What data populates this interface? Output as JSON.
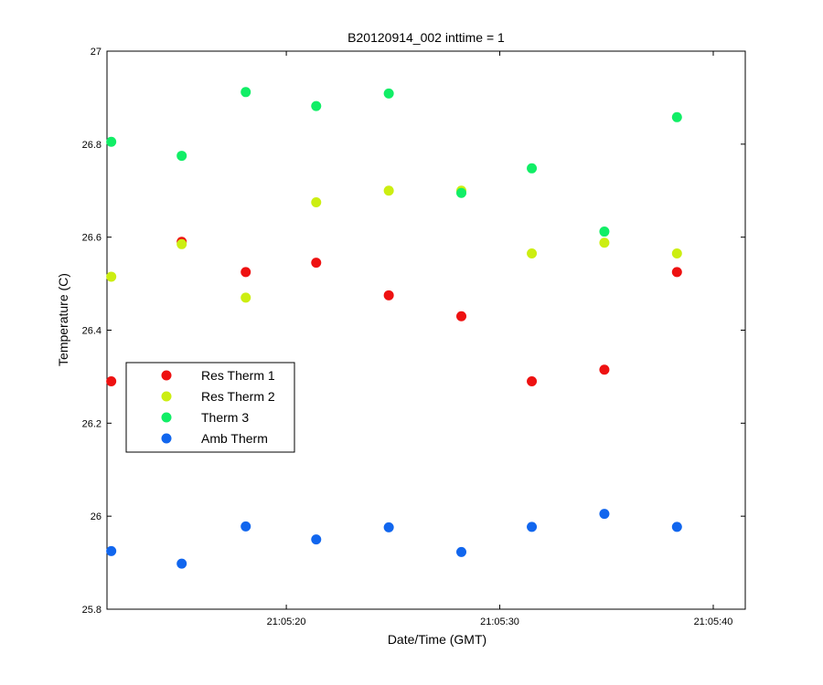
{
  "chart_data": {
    "type": "scatter",
    "title": "B20120914_002 inttime = 1",
    "xlabel": "Date/Time (GMT)",
    "ylabel": "Temperature (C)",
    "x_unit": "time (GMT)",
    "xlim": [
      "21:05:11.6",
      "21:05:41.5"
    ],
    "ylim": [
      25.8,
      27
    ],
    "x_ticks": [
      "21:05:20",
      "21:05:30",
      "21:05:40"
    ],
    "y_ticks": [
      "25.8",
      "26",
      "26.2",
      "26.4",
      "26.6",
      "26.8",
      "27"
    ],
    "grid": false,
    "legend_placement": "left-middle",
    "x": [
      "21:05:11.8",
      "21:05:15.1",
      "21:05:18.1",
      "21:05:21.4",
      "21:05:24.8",
      "21:05:28.2",
      "21:05:31.5",
      "21:05:34.9",
      "21:05:38.3"
    ],
    "series": [
      {
        "name": "Res Therm 1",
        "color": "#ee1111",
        "values": [
          26.29,
          26.59,
          26.525,
          26.545,
          26.475,
          26.43,
          26.29,
          26.315,
          26.525
        ]
      },
      {
        "name": "Res Therm 2",
        "color": "#ccee11",
        "values": [
          26.515,
          26.585,
          26.47,
          26.675,
          26.7,
          26.7,
          26.565,
          26.588,
          26.565
        ]
      },
      {
        "name": "Therm 3",
        "color": "#11ee66",
        "values": [
          26.805,
          26.775,
          26.912,
          26.882,
          26.909,
          26.695,
          26.748,
          26.612,
          26.858
        ]
      },
      {
        "name": "Amb Therm",
        "color": "#1166ee",
        "values": [
          25.925,
          25.898,
          25.978,
          25.95,
          25.976,
          25.923,
          25.977,
          26.005,
          25.977
        ]
      }
    ]
  }
}
